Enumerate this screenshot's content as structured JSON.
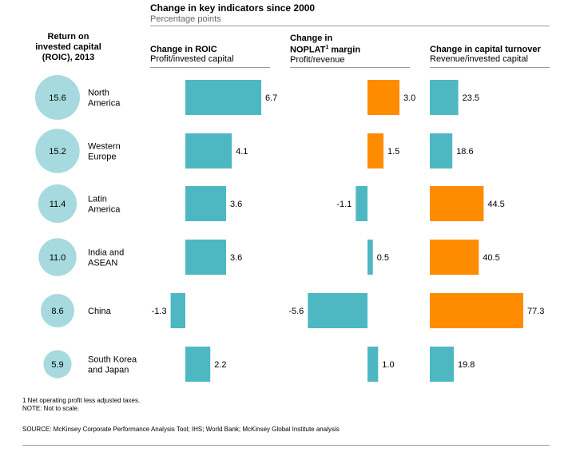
{
  "title": "Change in key indicators since 2000",
  "subtitle": "Percentage points",
  "left_header": [
    "Return on",
    "invested capital",
    "(ROIC), 2013"
  ],
  "columns": [
    {
      "key": "roic",
      "heading_lines": [
        "Change in ROIC"
      ],
      "subheading": "Profit/invested capital"
    },
    {
      "key": "noplat",
      "heading_lines": [
        "Change in",
        "NOPLAT",
        "1",
        " margin"
      ],
      "subheading": "Profit/revenue"
    },
    {
      "key": "turnover",
      "heading_lines": [
        "Change in capital turnover"
      ],
      "subheading": "Revenue/invested capital"
    }
  ],
  "colors": {
    "teal": "#4db8c2",
    "orange": "#ff8c00",
    "circle": "#a6dade",
    "rule": "#9a9a9a"
  },
  "chart_data": {
    "type": "bar",
    "title": "Change in key indicators since 2000",
    "subtitle": "Percentage points",
    "regions": [
      {
        "name_lines": [
          "North",
          "America"
        ],
        "roic_2013": "15.6"
      },
      {
        "name_lines": [
          "Western",
          "Europe"
        ],
        "roic_2013": "15.2"
      },
      {
        "name_lines": [
          "Latin",
          "America"
        ],
        "roic_2013": "11.4"
      },
      {
        "name_lines": [
          "India and",
          "ASEAN"
        ],
        "roic_2013": "11.0"
      },
      {
        "name_lines": [
          "China"
        ],
        "roic_2013": "8.6"
      },
      {
        "name_lines": [
          "South Korea",
          "and Japan"
        ],
        "roic_2013": "5.9"
      }
    ],
    "series": [
      {
        "key": "roic",
        "values": [
          6.7,
          4.1,
          3.6,
          3.6,
          -1.3,
          2.2
        ],
        "labels": [
          "6.7",
          "4.1",
          "3.6",
          "3.6",
          "-1.3",
          "2.2"
        ],
        "colors": [
          "teal",
          "teal",
          "teal",
          "teal",
          "teal",
          "teal"
        ]
      },
      {
        "key": "noplat",
        "values": [
          3.0,
          1.5,
          -1.1,
          0.5,
          -5.6,
          1.0
        ],
        "labels": [
          "3.0",
          "1.5",
          "-1.1",
          "0.5",
          "-5.6",
          "1.0"
        ],
        "colors": [
          "orange",
          "orange",
          "teal",
          "teal",
          "teal",
          "teal"
        ]
      },
      {
        "key": "turnover",
        "values": [
          23.5,
          18.6,
          44.5,
          40.5,
          77.3,
          19.8
        ],
        "labels": [
          "23.5",
          "18.6",
          "44.5",
          "40.5",
          "77.3",
          "19.8"
        ],
        "colors": [
          "teal",
          "teal",
          "orange",
          "orange",
          "orange",
          "teal"
        ]
      }
    ],
    "note": "Not to scale"
  },
  "footnotes": {
    "note1": "1  Net operating profit less adjusted taxes.",
    "note2": "NOTE: Not to scale.",
    "source": "SOURCE:  McKinsey Corporate Performance Analysis Tool; IHS; World Bank; McKinsey Global Institute analysis"
  }
}
